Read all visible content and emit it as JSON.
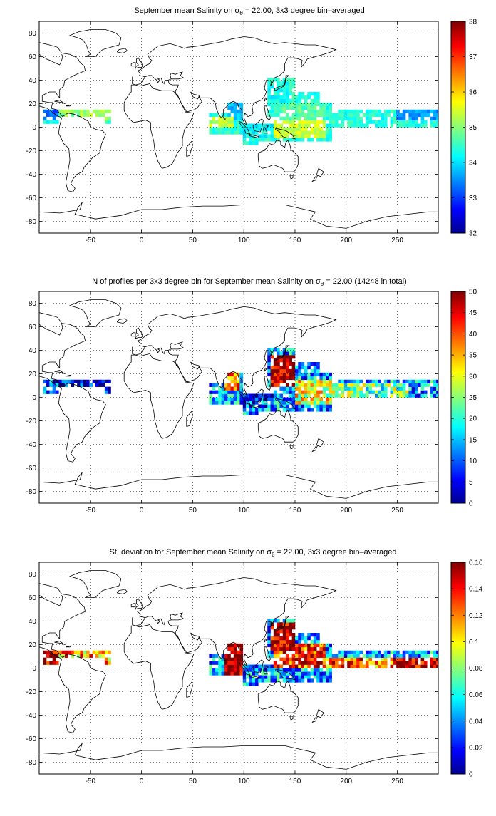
{
  "figure": {
    "panels": [
      {
        "title_pre": "September mean Salinity on σ",
        "title_sub": "θ",
        "title_post": " = 22.00, 3x3 degree bin–averaged",
        "colorbar": {
          "min": 32,
          "max": 38,
          "ticks": [
            "32",
            "33",
            "34",
            "35",
            "36",
            "37",
            "38"
          ]
        }
      },
      {
        "title_pre": "N of profiles per 3x3 degree bin for September mean Salinity on σ",
        "title_sub": "θ",
        "title_post": " = 22.00 (14248 in total)",
        "colorbar": {
          "min": 0,
          "max": 50,
          "ticks": [
            "0",
            "5",
            "10",
            "15",
            "20",
            "25",
            "30",
            "35",
            "40",
            "45",
            "50"
          ]
        }
      },
      {
        "title_pre": "St. deviation for September mean Salinity on σ",
        "title_sub": "θ",
        "title_post": " = 22.00, 3x3 degree bin–averaged",
        "colorbar": {
          "min": 0,
          "max": 0.16,
          "ticks": [
            "0",
            "0.02",
            "0.04",
            "0.06",
            "0.08",
            "0.1",
            "0.12",
            "0.14",
            "0.16"
          ]
        }
      }
    ],
    "x_ticks": [
      "-50",
      "0",
      "50",
      "100",
      "150",
      "200",
      "250"
    ],
    "y_ticks": [
      "80",
      "60",
      "40",
      "20",
      "0",
      "-20",
      "-40",
      "-60",
      "-80"
    ]
  },
  "chart_data": [
    {
      "type": "heatmap",
      "title": "September mean Salinity on σθ = 22.00, 3x3 degree bin–averaged",
      "xlim": [
        -100,
        290
      ],
      "ylim": [
        -90,
        90
      ],
      "grid": true,
      "colormap": "jet",
      "color_range": [
        32,
        38
      ],
      "colorbar_position": "right",
      "approx_regions": [
        {
          "lon": [
            -95,
            -80
          ],
          "lat": [
            5,
            15
          ],
          "value": 33.3
        },
        {
          "lon": [
            -80,
            -60
          ],
          "lat": [
            5,
            20
          ],
          "value": 35.0
        },
        {
          "lon": [
            -60,
            -30
          ],
          "lat": [
            5,
            15
          ],
          "value": 35.2
        },
        {
          "lon": [
            65,
            90
          ],
          "lat": [
            0,
            10
          ],
          "value": 35.3
        },
        {
          "lon": [
            85,
            100
          ],
          "lat": [
            5,
            20
          ],
          "value": 33.8
        },
        {
          "lon": [
            100,
            130
          ],
          "lat": [
            -10,
            5
          ],
          "value": 34.2
        },
        {
          "lon": [
            125,
            145
          ],
          "lat": [
            20,
            35
          ],
          "value": 34.3
        },
        {
          "lon": [
            130,
            180
          ],
          "lat": [
            -10,
            5
          ],
          "value": 35.4
        },
        {
          "lon": [
            130,
            180
          ],
          "lat": [
            5,
            20
          ],
          "value": 34.7
        },
        {
          "lon": [
            180,
            250
          ],
          "lat": [
            0,
            15
          ],
          "value": 34.4
        },
        {
          "lon": [
            250,
            290
          ],
          "lat": [
            5,
            15
          ],
          "value": 33.6
        }
      ]
    },
    {
      "type": "heatmap",
      "title": "N of profiles per 3x3 degree bin for September mean Salinity on σθ = 22.00 (14248 in total)",
      "xlim": [
        -100,
        290
      ],
      "ylim": [
        -90,
        90
      ],
      "grid": true,
      "colormap": "jet",
      "color_range": [
        0,
        50
      ],
      "colorbar_position": "right",
      "approx_regions": [
        {
          "lon": [
            -95,
            -80
          ],
          "lat": [
            5,
            15
          ],
          "value": 8
        },
        {
          "lon": [
            -80,
            -30
          ],
          "lat": [
            0,
            15
          ],
          "value": 3
        },
        {
          "lon": [
            80,
            95
          ],
          "lat": [
            5,
            20
          ],
          "value": 35
        },
        {
          "lon": [
            100,
            130
          ],
          "lat": [
            -10,
            5
          ],
          "value": 8
        },
        {
          "lon": [
            125,
            150
          ],
          "lat": [
            10,
            35
          ],
          "value": 48
        },
        {
          "lon": [
            150,
            185
          ],
          "lat": [
            -5,
            15
          ],
          "value": 28
        },
        {
          "lon": [
            185,
            260
          ],
          "lat": [
            0,
            12
          ],
          "value": 22
        },
        {
          "lon": [
            260,
            290
          ],
          "lat": [
            0,
            10
          ],
          "value": 12
        }
      ]
    },
    {
      "type": "heatmap",
      "title": "St. deviation for September mean Salinity on σθ = 22.00, 3x3 degree bin–averaged",
      "xlim": [
        -100,
        290
      ],
      "ylim": [
        -90,
        90
      ],
      "grid": true,
      "colormap": "jet",
      "color_range": [
        0,
        0.16
      ],
      "colorbar_position": "right",
      "approx_regions": [
        {
          "lon": [
            -95,
            -80
          ],
          "lat": [
            0,
            15
          ],
          "value": 0.15
        },
        {
          "lon": [
            -80,
            -30
          ],
          "lat": [
            0,
            15
          ],
          "value": 0.11
        },
        {
          "lon": [
            80,
            100
          ],
          "lat": [
            -10,
            20
          ],
          "value": 0.15
        },
        {
          "lon": [
            125,
            150
          ],
          "lat": [
            15,
            40
          ],
          "value": 0.15
        },
        {
          "lon": [
            130,
            180
          ],
          "lat": [
            0,
            20
          ],
          "value": 0.13
        },
        {
          "lon": [
            180,
            250
          ],
          "lat": [
            0,
            10
          ],
          "value": 0.12
        },
        {
          "lon": [
            250,
            290
          ],
          "lat": [
            0,
            10
          ],
          "value": 0.15
        }
      ]
    }
  ]
}
